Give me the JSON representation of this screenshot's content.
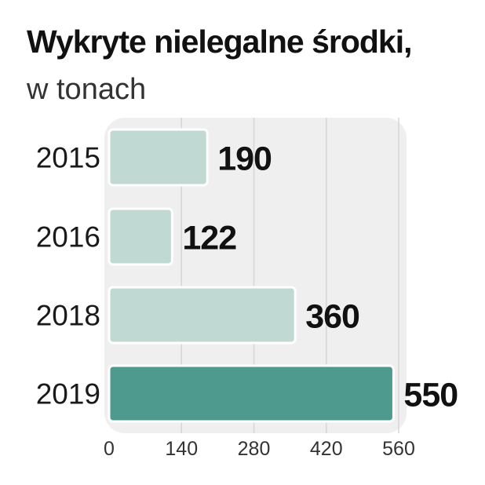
{
  "header": {
    "title": "Wykryte nielegalne środki,",
    "subtitle": "w tonach"
  },
  "colors": {
    "bar_light": "#c0dad3",
    "bar_dark": "#4f9a8f",
    "panel": "#efefef",
    "grid": "#d6d6d6"
  },
  "chart_data": {
    "type": "bar",
    "orientation": "horizontal",
    "title": "Wykryte nielegalne środki,",
    "subtitle": "w tonach",
    "categories": [
      "2015",
      "2016",
      "2018",
      "2019"
    ],
    "values": [
      190,
      122,
      360,
      550
    ],
    "value_labels": [
      "190",
      "122",
      "360",
      "550"
    ],
    "highlight_index": 3,
    "xlim": [
      0,
      560
    ],
    "xticks": [
      0,
      140,
      280,
      420,
      560
    ],
    "xtick_labels": [
      "0",
      "140",
      "280",
      "420",
      "560"
    ],
    "grid": true,
    "legend": "none"
  }
}
